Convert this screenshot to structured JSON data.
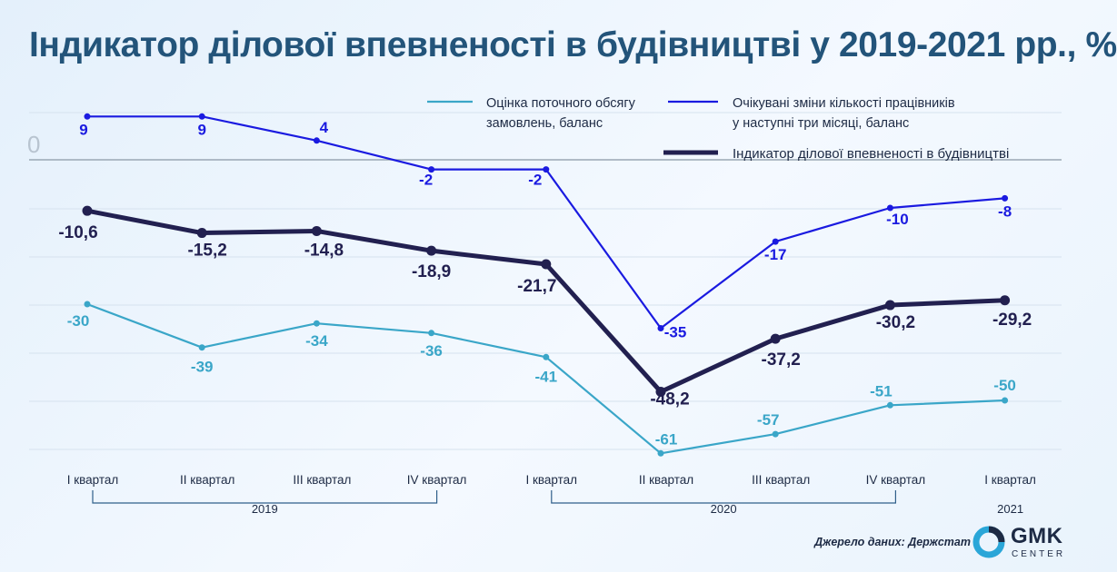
{
  "title": "Індикатор ділової впевненості в будівництві у 2019-2021 рр., %",
  "source": "Джерело даних: Держстат",
  "logo": {
    "name": "GMK",
    "subtitle": "CENTER"
  },
  "colors": {
    "title": "#23547a",
    "orders": "#3aa6c8",
    "workers": "#1a1ae0",
    "indicator": "#222050",
    "grid": "#d6e2ee"
  },
  "chart_data": {
    "type": "line",
    "categories": [
      "I квартал",
      "II квартал",
      "III квартал",
      "IV квартал",
      "I квартал",
      "II квартал",
      "III квартал",
      "IV квартал",
      "I квартал"
    ],
    "year_groups": [
      {
        "label": "2019",
        "start": 0,
        "end": 3
      },
      {
        "label": "2020",
        "start": 4,
        "end": 7
      },
      {
        "label": "2021",
        "start": 8,
        "end": 8
      }
    ],
    "zero_label": "0",
    "ylim": [
      -60,
      9
    ],
    "series": [
      {
        "name": "Оцінка поточного обсягу замовлень, баланс",
        "legend_lines": [
          "Оцінка поточного обсягу",
          "замовлень, баланс"
        ],
        "color": "#3aa6c8",
        "values": [
          -30,
          -39,
          -34,
          -36,
          -41,
          -61,
          -57,
          -51,
          -50
        ],
        "labels": [
          "-30",
          "-39",
          "-34",
          "-36",
          "-41",
          "-61",
          "-57",
          "-51",
          "-50"
        ]
      },
      {
        "name": "Очікувані зміни кількості працівників у наступні три місяці, баланс",
        "legend_lines": [
          "Очікувані зміни кількості працівників",
          "у наступні три місяці, баланс"
        ],
        "color": "#1a1ae0",
        "values": [
          9,
          9,
          4,
          -2,
          -2,
          -35,
          -17,
          -10,
          -8
        ],
        "labels": [
          "9",
          "9",
          "4",
          "-2",
          "-2",
          "-35",
          "-17",
          "-10",
          "-8"
        ]
      },
      {
        "name": "Індикатор ділової впевненості в будівництві",
        "legend_lines": [
          "Індикатор ділової впевненості в будівництві"
        ],
        "color": "#222050",
        "values": [
          -10.6,
          -15.2,
          -14.8,
          -18.9,
          -21.7,
          -48.2,
          -37.2,
          -30.2,
          -29.2
        ],
        "labels": [
          "-10,6",
          "-15,2",
          "-14,8",
          "-18,9",
          "-21,7",
          "-48,2",
          "-37,2",
          "-30,2",
          "-29,2"
        ]
      }
    ]
  }
}
